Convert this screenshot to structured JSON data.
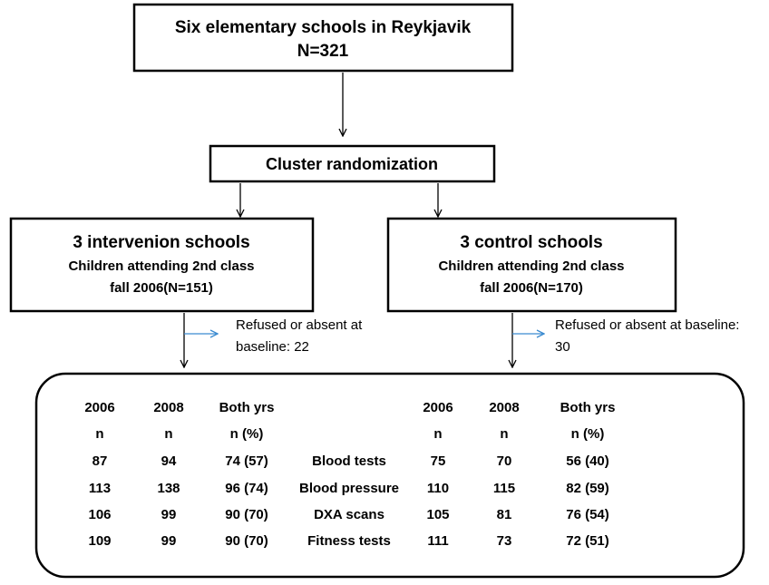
{
  "top": {
    "title": "Six elementary schools in Reykjavik",
    "n": "N=321"
  },
  "randomization": "Cluster randomization",
  "left": {
    "title": "3 intervenion schools",
    "line1": "Children attending 2nd class",
    "line2": "fall 2006(N=151)",
    "excluded": [
      "Refused or absent at",
      "baseline: 22"
    ]
  },
  "right": {
    "title": "3 control schools",
    "line1": "Children attending 2nd class",
    "line2": "fall 2006(N=170)",
    "excluded": [
      "Refused or absent at baseline:",
      "30"
    ]
  },
  "table": {
    "left_header": [
      [
        "2006",
        "2008",
        "Both yrs"
      ],
      [
        "n",
        "n",
        "n (%)"
      ]
    ],
    "right_header": [
      [
        "2006",
        "2008",
        "Both yrs"
      ],
      [
        "n",
        "n",
        "n (%)"
      ]
    ],
    "rows": [
      {
        "label": "Blood tests",
        "left": [
          "87",
          "94",
          "74 (57)"
        ],
        "right": [
          "75",
          "70",
          "56 (40)"
        ]
      },
      {
        "label": "Blood pressure",
        "left": [
          "113",
          "138",
          "96 (74)"
        ],
        "right": [
          "110",
          "115",
          "82 (59)"
        ]
      },
      {
        "label": "DXA scans",
        "left": [
          "106",
          "99",
          "90 (70)"
        ],
        "right": [
          "105",
          "81",
          "76 (54)"
        ]
      },
      {
        "label": "Fitness tests",
        "left": [
          "109",
          "99",
          "90 (70)"
        ],
        "right": [
          "111",
          "73",
          "72 (51)"
        ]
      }
    ]
  }
}
